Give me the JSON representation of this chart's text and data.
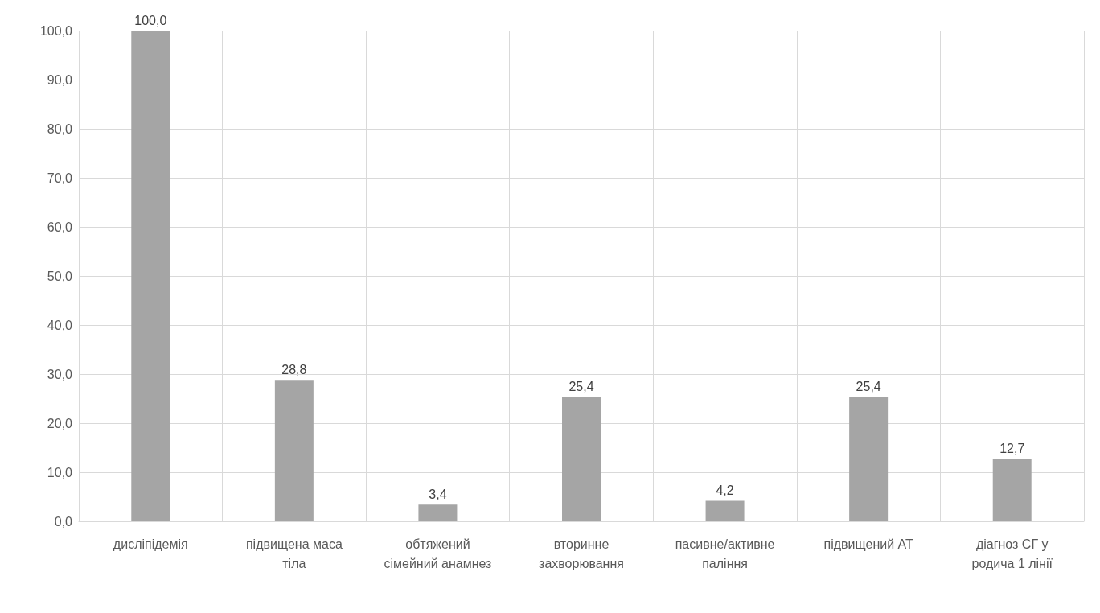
{
  "chart_data": {
    "type": "bar",
    "categories": [
      "дисліпідемія",
      "підвищена маса тіла",
      "обтяжений сімейний анамнез",
      "вторинне захворювання",
      "пасивне/активне паління",
      "підвищений АТ",
      "діагноз СГ у родича 1 лінії"
    ],
    "values": [
      100.0,
      28.8,
      3.4,
      25.4,
      4.2,
      25.4,
      12.7
    ],
    "value_labels": [
      "100,0",
      "28,8",
      "3,4",
      "25,4",
      "4,2",
      "25,4",
      "12,7"
    ],
    "color": "#a5a5a5",
    "ylim": [
      0,
      100
    ],
    "yticks": [
      {
        "value": 0,
        "label": "0,0"
      },
      {
        "value": 10,
        "label": "10,0"
      },
      {
        "value": 20,
        "label": "20,0"
      },
      {
        "value": 30,
        "label": "30,0"
      },
      {
        "value": 40,
        "label": "40,0"
      },
      {
        "value": 50,
        "label": "50,0"
      },
      {
        "value": 60,
        "label": "60,0"
      },
      {
        "value": 70,
        "label": "70,0"
      },
      {
        "value": 80,
        "label": "80,0"
      },
      {
        "value": 90,
        "label": "90,0"
      },
      {
        "value": 100,
        "label": "100,0"
      }
    ],
    "grid": true
  }
}
